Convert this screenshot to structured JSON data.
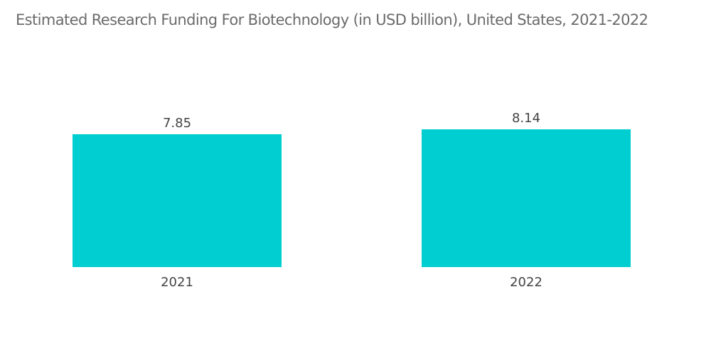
{
  "chart_data": {
    "type": "bar",
    "title": "Estimated Research Funding For Biotechnology (in USD billion), United States, 2021-2022",
    "xlabel": "",
    "ylabel": "",
    "categories": [
      "2021",
      "2022"
    ],
    "values": [
      7.85,
      8.14
    ],
    "data_labels": [
      "7.85",
      "8.14"
    ],
    "colors": {
      "bar": "#00CED1"
    },
    "grid": false,
    "legend": "none"
  }
}
